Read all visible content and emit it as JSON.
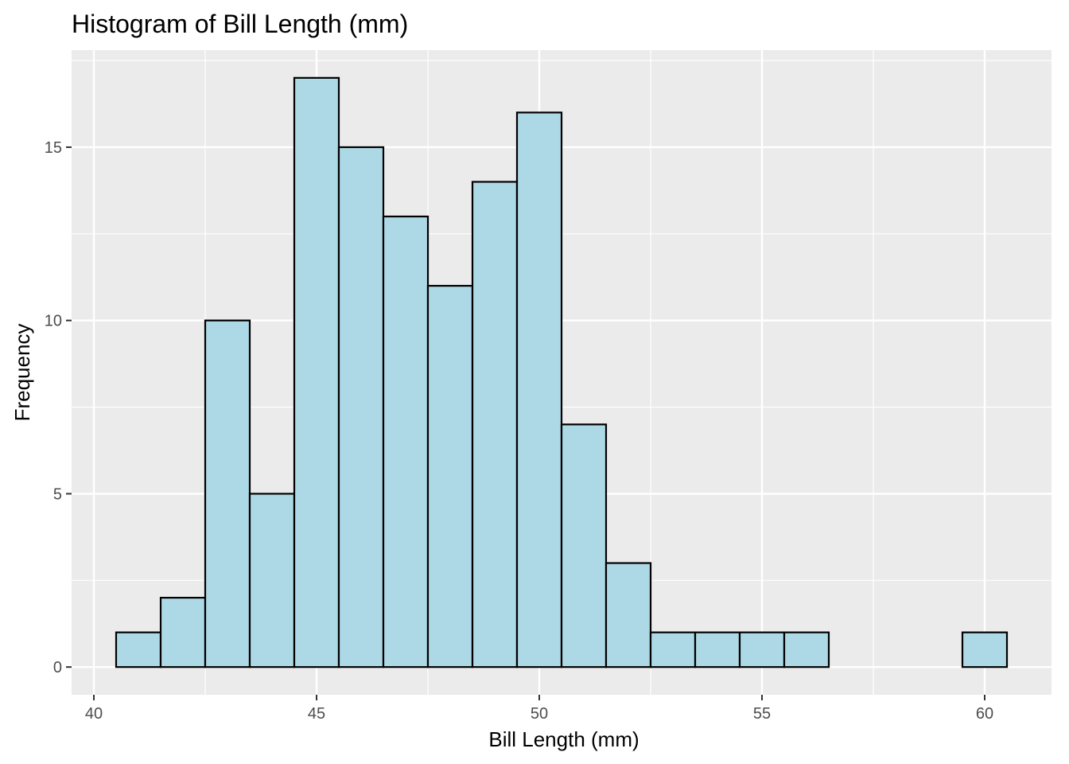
{
  "chart_data": {
    "type": "bar",
    "title": "Histogram of Bill Length (mm)",
    "xlabel": "Bill Length (mm)",
    "ylabel": "Frequency",
    "xlim": [
      39.5,
      61.5
    ],
    "ylim": [
      -0.8,
      17.8
    ],
    "x_ticks": [
      40,
      45,
      50,
      55,
      60
    ],
    "y_ticks": [
      0,
      5,
      10,
      15
    ],
    "bin_width": 1,
    "bins": [
      {
        "x": 41,
        "count": 1
      },
      {
        "x": 42,
        "count": 2
      },
      {
        "x": 43,
        "count": 10
      },
      {
        "x": 44,
        "count": 5
      },
      {
        "x": 45,
        "count": 17
      },
      {
        "x": 46,
        "count": 15
      },
      {
        "x": 47,
        "count": 13
      },
      {
        "x": 48,
        "count": 11
      },
      {
        "x": 49,
        "count": 14
      },
      {
        "x": 50,
        "count": 16
      },
      {
        "x": 51,
        "count": 7
      },
      {
        "x": 52,
        "count": 3
      },
      {
        "x": 53,
        "count": 1
      },
      {
        "x": 54,
        "count": 1
      },
      {
        "x": 55,
        "count": 1
      },
      {
        "x": 56,
        "count": 1
      },
      {
        "x": 57,
        "count": 0
      },
      {
        "x": 58,
        "count": 0
      },
      {
        "x": 59,
        "count": 0
      },
      {
        "x": 60,
        "count": 1
      }
    ],
    "grid": true,
    "colors": {
      "panel_background": "#ebebeb",
      "grid": "#ffffff",
      "bar_fill": "#add8e6",
      "bar_outline": "#000000"
    }
  }
}
